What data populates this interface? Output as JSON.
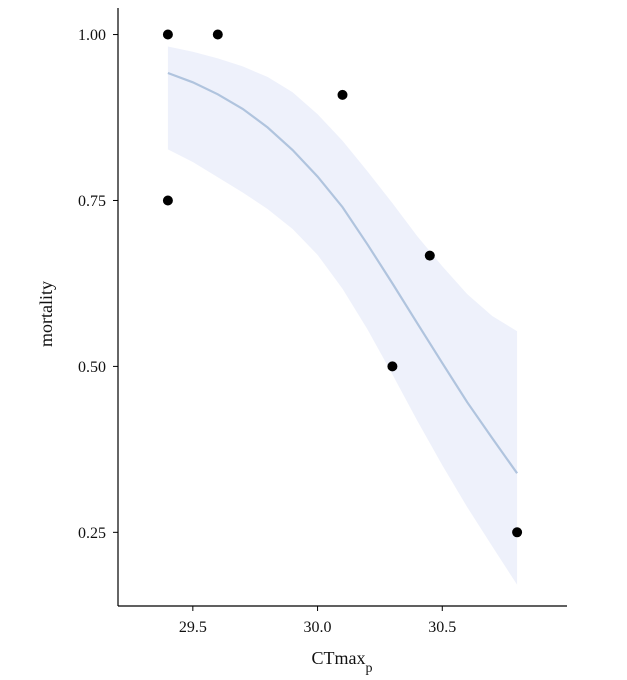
{
  "chart_data": {
    "type": "scatter",
    "xlabel": "CTmax",
    "xlabel_subscript": "p",
    "ylabel": "mortality",
    "xlim": [
      29.2,
      31.0
    ],
    "ylim": [
      0.139,
      1.04
    ],
    "x_ticks": [
      29.5,
      30.0,
      30.5
    ],
    "x_tick_labels": [
      "29.5",
      "30.0",
      "30.5"
    ],
    "y_ticks": [
      0.25,
      0.5,
      0.75,
      1.0
    ],
    "y_tick_labels": [
      "0.25",
      "0.50",
      "0.75",
      "1.00"
    ],
    "grid": false,
    "points": [
      {
        "x": 29.4,
        "y": 1.0
      },
      {
        "x": 29.4,
        "y": 0.75
      },
      {
        "x": 29.6,
        "y": 1.0
      },
      {
        "x": 30.1,
        "y": 0.909
      },
      {
        "x": 30.3,
        "y": 0.5
      },
      {
        "x": 30.45,
        "y": 0.667
      },
      {
        "x": 30.8,
        "y": 0.25
      }
    ],
    "fit_line": {
      "x": [
        29.4,
        29.5,
        29.6,
        29.7,
        29.8,
        29.9,
        30.0,
        30.1,
        30.2,
        30.3,
        30.4,
        30.5,
        30.6,
        30.7,
        30.8
      ],
      "y": [
        0.942,
        0.928,
        0.91,
        0.888,
        0.86,
        0.826,
        0.786,
        0.74,
        0.684,
        0.625,
        0.565,
        0.505,
        0.446,
        0.392,
        0.339
      ]
    },
    "confidence_band": {
      "x": [
        29.4,
        29.5,
        29.6,
        29.7,
        29.8,
        29.9,
        30.0,
        30.1,
        30.2,
        30.3,
        30.4,
        30.5,
        30.6,
        30.7,
        30.8
      ],
      "lower": [
        0.827,
        0.808,
        0.785,
        0.762,
        0.737,
        0.707,
        0.668,
        0.617,
        0.556,
        0.488,
        0.418,
        0.351,
        0.288,
        0.229,
        0.171
      ],
      "upper": [
        0.982,
        0.974,
        0.964,
        0.952,
        0.936,
        0.913,
        0.88,
        0.84,
        0.794,
        0.746,
        0.696,
        0.651,
        0.609,
        0.576,
        0.553
      ]
    },
    "colors": {
      "points": "#000000",
      "line": "#b0c4de",
      "band": "#eef1fb"
    }
  }
}
